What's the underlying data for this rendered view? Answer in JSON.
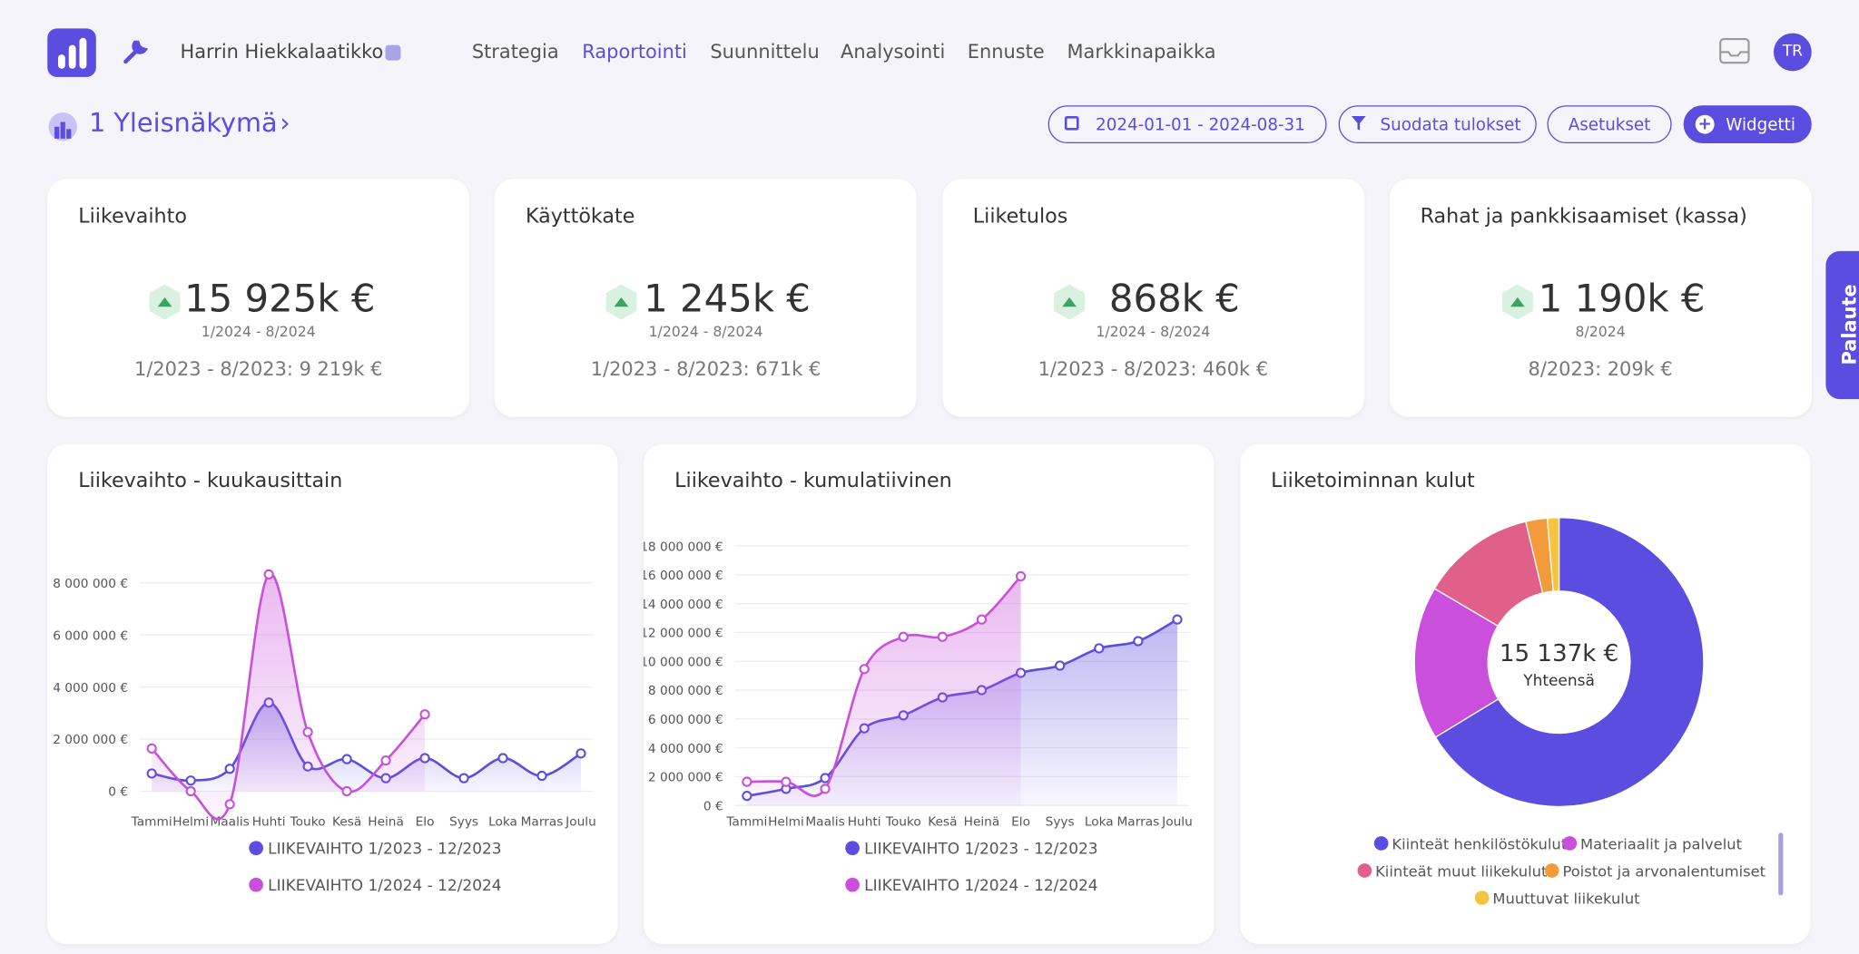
{
  "nav": {
    "brand_user": "Harrin Hiekkalaatikko",
    "items": [
      "Strategia",
      "Raportointi",
      "Suunnittelu",
      "Analysointi",
      "Ennuste",
      "Markkinapaikka"
    ],
    "active": 1,
    "avatar": "TR"
  },
  "page": {
    "title": "1 Yleisnäkymä",
    "date_range": "2024-01-01 - 2024-08-31",
    "filter": "Suodata tulokset",
    "settings": "Asetukset",
    "widget": "Widgetti"
  },
  "feedback": "Palaute",
  "kpis": [
    {
      "title": "Liikevaihto",
      "value": "15 925k €",
      "period": "1/2024 - 8/2024",
      "comparison": "1/2023 - 8/2023: 9 219k €"
    },
    {
      "title": "Käyttökate",
      "value": "1 245k €",
      "period": "1/2024 - 8/2024",
      "comparison": "1/2023 - 8/2023: 671k €"
    },
    {
      "title": "Liiketulos",
      "value": "868k €",
      "period": "1/2024 - 8/2024",
      "comparison": "1/2023 - 8/2023: 460k €"
    },
    {
      "title": "Rahat ja pankkisaamiset (kassa)",
      "value": "1 190k €",
      "period": "8/2024",
      "comparison": "8/2023: 209k €"
    }
  ],
  "chart_data": [
    {
      "type": "line",
      "title": "Liikevaihto - kuukausittain",
      "area": true,
      "grid": true,
      "categories": [
        "Tammi",
        "Helmi",
        "Maalis",
        "Huhti",
        "Touko",
        "Kesä",
        "Heinä",
        "Elo",
        "Syys",
        "Loka",
        "Marras",
        "Joulu"
      ],
      "series": [
        {
          "name": "LIIKEVAIHTO 1/2023 - 12/2023",
          "color": "#5b4de0",
          "values": [
            680000,
            410000,
            860000,
            3400000,
            950000,
            1230000,
            500000,
            1270000,
            500000,
            1270000,
            590000,
            1450000
          ]
        },
        {
          "name": "LIIKEVAIHTO 1/2024 - 12/2024",
          "color": "#c94fdc",
          "values": [
            1640000,
            0,
            -500000,
            8320000,
            2270000,
            0,
            1180000,
            2950000,
            null,
            null,
            null,
            null
          ]
        }
      ],
      "ylim": [
        -1000000,
        9000000
      ],
      "yticks": [
        {
          "value": 0,
          "label": "0 €"
        },
        {
          "value": 2000000,
          "label": "2 000 000 €"
        },
        {
          "value": 4000000,
          "label": "4 000 000 €"
        },
        {
          "value": 6000000,
          "label": "6 000 000 €"
        },
        {
          "value": 8000000,
          "label": "8 000 000 €"
        }
      ]
    },
    {
      "type": "line",
      "title": "Liikevaihto - kumulatiivinen",
      "area": true,
      "grid": true,
      "categories": [
        "Tammi",
        "Helmi",
        "Maalis",
        "Huhti",
        "Touko",
        "Kesä",
        "Heinä",
        "Elo",
        "Syys",
        "Loka",
        "Marras",
        "Joulu"
      ],
      "series": [
        {
          "name": "LIIKEVAIHTO 1/2023 - 12/2023",
          "color": "#5b4de0",
          "values": [
            660000,
            1150000,
            1900000,
            5350000,
            6250000,
            7500000,
            8000000,
            9200000,
            9700000,
            10900000,
            11400000,
            12900000
          ]
        },
        {
          "name": "LIIKEVAIHTO 1/2024 - 12/2024",
          "color": "#c94fdc",
          "values": [
            1640000,
            1640000,
            1150000,
            9460000,
            11700000,
            11700000,
            12900000,
            15900000,
            null,
            null,
            null,
            null
          ]
        }
      ],
      "ylim": [
        0,
        18000000
      ],
      "yticks": [
        {
          "value": 0,
          "label": "0 €"
        },
        {
          "value": 2000000,
          "label": "2 000 000 €"
        },
        {
          "value": 4000000,
          "label": "4 000 000 €"
        },
        {
          "value": 6000000,
          "label": "6 000 000 €"
        },
        {
          "value": 8000000,
          "label": "8 000 000 €"
        },
        {
          "value": 10000000,
          "label": "10 000 000 €"
        },
        {
          "value": 12000000,
          "label": "12 000 000 €"
        },
        {
          "value": 14000000,
          "label": "14 000 000 €"
        },
        {
          "value": 16000000,
          "label": "16 000 000 €"
        },
        {
          "value": 18000000,
          "label": "18 000 000 €"
        }
      ]
    },
    {
      "type": "donut",
      "title": "Liiketoiminnan kulut",
      "center_value": "15 137k €",
      "center_label": "Yhteensä",
      "categories": [
        "Kiinteät henkilöstökulut",
        "Materiaalit ja palvelut",
        "Kiinteät muut liikekulut",
        "Poistot ja arvonalentumiset",
        "Muuttuvat liikekulut"
      ],
      "values": [
        66.3,
        17.2,
        12.8,
        2.4,
        1.3
      ],
      "colors": [
        "#5b4de0",
        "#c94fdc",
        "#e0608a",
        "#f39a3b",
        "#f5c542"
      ]
    }
  ]
}
